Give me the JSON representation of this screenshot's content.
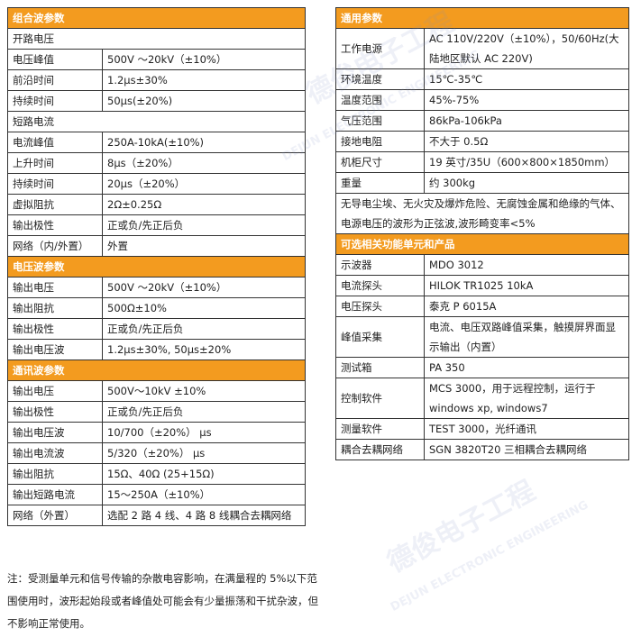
{
  "left": {
    "sections": [
      {
        "title": "组合波参数",
        "rows": [
          [
            "开路电压"
          ],
          [
            "电压峰值",
            "500V ～20kV（±10%）"
          ],
          [
            "前沿时间",
            "1.2μs±30%"
          ],
          [
            "持续时间",
            "50μs(±20%)"
          ],
          [
            "短路电流"
          ],
          [
            "电流峰值",
            "250A-10kA(±10%)"
          ],
          [
            "上升时间",
            "8μs（±20%）"
          ],
          [
            "持续时间",
            "20μs（±20%）"
          ],
          [
            "虚拟阻抗",
            "2Ω±0.25Ω"
          ],
          [
            "输出极性",
            "正或负/先正后负"
          ],
          [
            "网络（内/外置）",
            "外置"
          ]
        ]
      },
      {
        "title": "电压波参数",
        "rows": [
          [
            "输出电压",
            "500V ～20kV（±10%）"
          ],
          [
            "输出阻抗",
            "500Ω±10%"
          ],
          [
            "输出极性",
            "正或负/先正后负"
          ],
          [
            "输出电压波",
            "1.2μs±30%, 50μs±20%"
          ]
        ]
      },
      {
        "title": "通讯波参数",
        "rows": [
          [
            "输出电压",
            "500V～10kV ±10%"
          ],
          [
            "输出极性",
            "正或负/先正后负"
          ],
          [
            "输出电压波",
            "10/700（±20%） μs"
          ],
          [
            "输出电流波",
            "5/320（±20%） μs"
          ],
          [
            "输出阻抗",
            "15Ω、40Ω (25+15Ω)"
          ],
          [
            "输出短路电流",
            "15～250A（±10%）"
          ],
          [
            "网络（外置）",
            "选配 2 路 4 线、4 路 8 线耦合去耦网络"
          ]
        ]
      }
    ]
  },
  "right": {
    "sections": [
      {
        "title": "通用参数",
        "rows": [
          [
            "工作电源",
            "AC 110V/220V（±10%），50/60Hz(大陆地区默认 AC 220V)"
          ],
          [
            "环境温度",
            "15℃-35℃"
          ],
          [
            "温度范围",
            "45%-75%"
          ],
          [
            "气压范围",
            "86kPa-106kPa"
          ],
          [
            "接地电阻",
            "不大于 0.5Ω"
          ],
          [
            "机柜尺寸",
            "19 英寸/35U（600×800×1850mm）"
          ],
          [
            "重量",
            "约 300kg"
          ],
          [
            "无导电尘埃、无火灾及爆炸危险、无腐蚀金属和绝缘的气体、电源电压的波形为正弦波,波形畸变率<5%"
          ]
        ]
      },
      {
        "title": "可选相关功能单元和产品",
        "rows": [
          [
            "示波器",
            "MDO 3012"
          ],
          [
            "电流探头",
            "HILOK TR1025 10kA"
          ],
          [
            "电压探头",
            "泰克 P 6015A"
          ],
          [
            "峰值采集",
            "电流、电压双路峰值采集，触摸屏界面显示输出（内置）"
          ],
          [
            "测试箱",
            "PA 350"
          ],
          [
            "控制软件",
            "MCS 3000，用于远程控制，运行于 windows xp, windows7"
          ],
          [
            "测量软件",
            "TEST 3000，光纤通讯"
          ],
          [
            "耦合去耦网络",
            "SGN 3820T20 三相耦合去耦网络"
          ]
        ]
      }
    ]
  },
  "note": "注：受测量单元和信号传输的杂散电容影响，在满量程的 5%以下范围使用时，波形起始段或者峰值处可能会有少量振荡和干扰杂波，但不影响正常使用。",
  "watermark": {
    "cn": "德俊电子工程",
    "en": "DEJUN ELECTRONIC ENGINEERING"
  }
}
